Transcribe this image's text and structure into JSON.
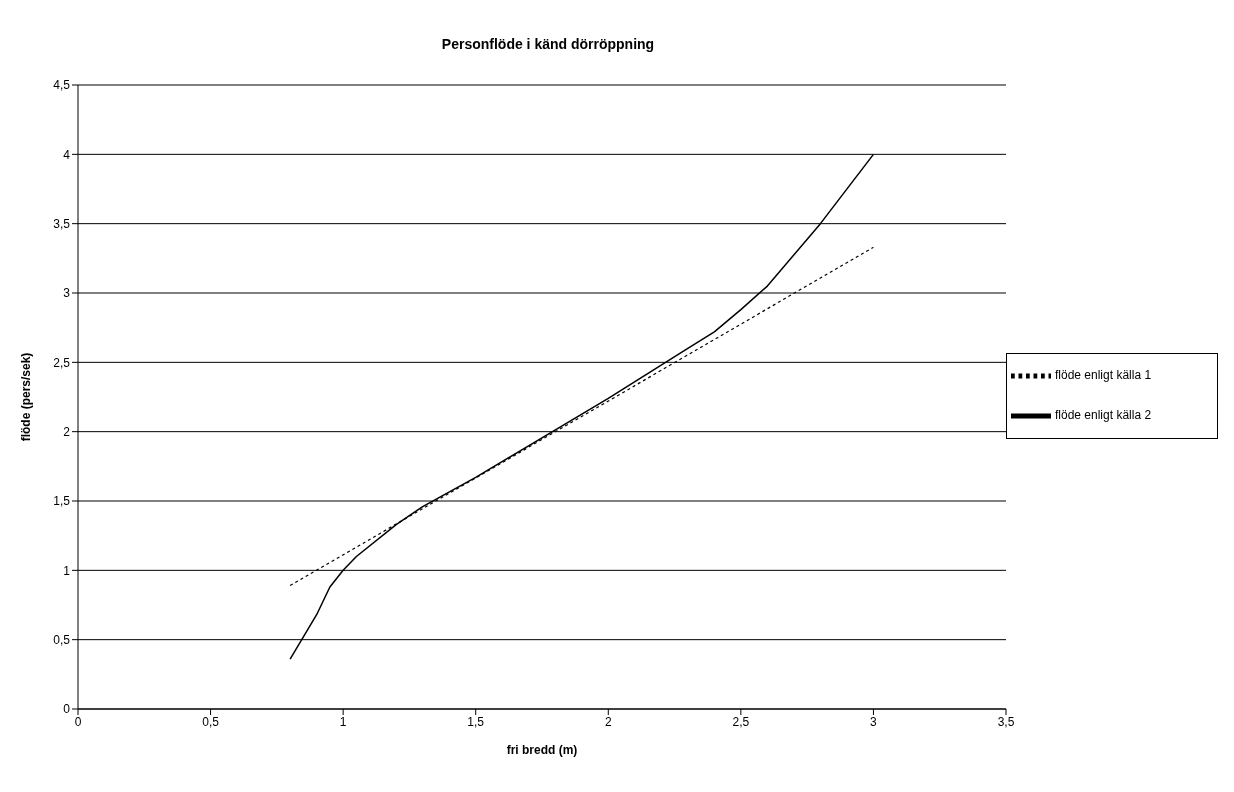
{
  "chart_data": {
    "type": "line",
    "title": "Personflöde i känd dörröppning",
    "xlabel": "fri bredd (m)",
    "ylabel": "flöde (pers/sek)",
    "xlim": [
      0,
      3.5
    ],
    "xticks": [
      {
        "value": 0,
        "label": "0"
      },
      {
        "value": 0.5,
        "label": "0,5"
      },
      {
        "value": 1,
        "label": "1"
      },
      {
        "value": 1.5,
        "label": "1,5"
      },
      {
        "value": 2,
        "label": "2"
      },
      {
        "value": 2.5,
        "label": "2,5"
      },
      {
        "value": 3,
        "label": "3"
      },
      {
        "value": 3.5,
        "label": "3,5"
      }
    ],
    "ylim": [
      0,
      4.5
    ],
    "yticks": [
      {
        "value": 0,
        "label": "0"
      },
      {
        "value": 0.5,
        "label": "0,5"
      },
      {
        "value": 1,
        "label": "1"
      },
      {
        "value": 1.5,
        "label": "1,5"
      },
      {
        "value": 2,
        "label": "2"
      },
      {
        "value": 2.5,
        "label": "2,5"
      },
      {
        "value": 3,
        "label": "3"
      },
      {
        "value": 3.5,
        "label": "3,5"
      },
      {
        "value": 4,
        "label": "4"
      },
      {
        "value": 4.5,
        "label": "4,5"
      }
    ],
    "grid": "y",
    "legend": "right",
    "marker": "none",
    "series": [
      {
        "name": "flöde enligt källa 1",
        "color": "#000000",
        "line_style": "dotted",
        "x": [
          0.8,
          3.0
        ],
        "values": [
          0.89,
          3.33
        ]
      },
      {
        "name": "flöde enligt källa 2",
        "color": "#000000",
        "line_style": "solid",
        "x": [
          0.8,
          0.9,
          0.95,
          1.0,
          1.05,
          1.2,
          1.3,
          1.5,
          2.0,
          2.3,
          2.4,
          2.5,
          2.6,
          2.8,
          3.0
        ],
        "values": [
          0.36,
          0.68,
          0.88,
          1.0,
          1.1,
          1.33,
          1.46,
          1.67,
          2.24,
          2.6,
          2.72,
          2.88,
          3.05,
          3.5,
          4.0
        ]
      }
    ]
  }
}
